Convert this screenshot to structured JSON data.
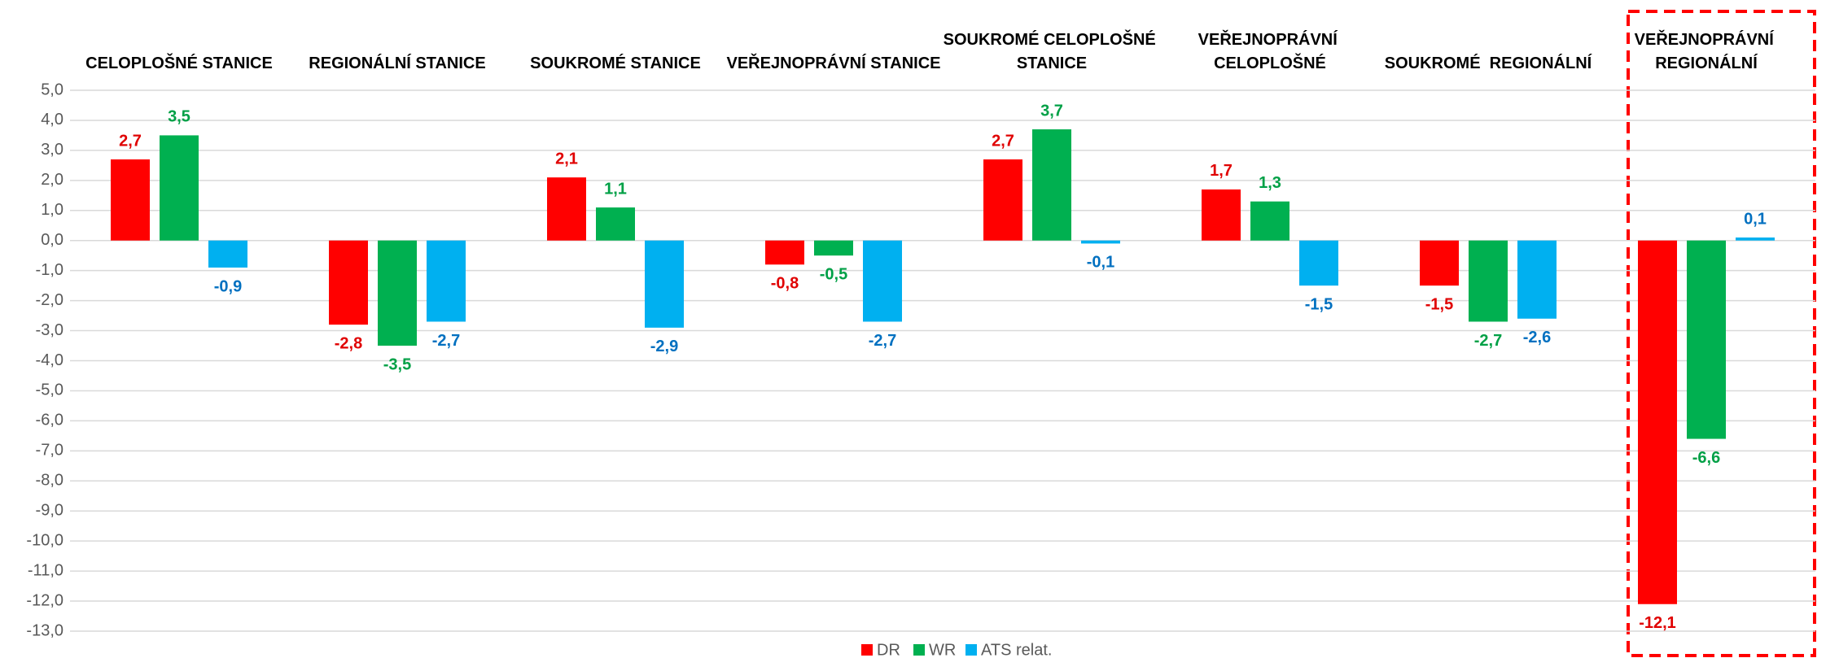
{
  "chart_data": {
    "type": "bar",
    "categories": [
      "CELOPLOŠNÉ STANICE",
      "REGIONÁLNÍ STANICE",
      "SOUKROMÉ STANICE",
      "VEŘEJNOPRÁVNÍ STANICE",
      "SOUKROMÉ CELOPLOŠNÉ STANICE",
      "VEŘEJNOPRÁVNÍ CELOPLOŠNÉ",
      "SOUKROMÉ  REGIONÁLNÍ",
      "VEŘEJNOPRÁVNÍ REGIONÁLNÍ"
    ],
    "series": [
      {
        "name": "DR",
        "color": "#ff0000",
        "label_color": "#e00000",
        "values": [
          2.7,
          -2.8,
          2.1,
          -0.8,
          2.7,
          1.7,
          -1.5,
          -12.1
        ],
        "value_labels": [
          "2,7",
          "-2,8",
          "2,1",
          "-0,8",
          "2,7",
          "1,7",
          "-1,5",
          "-12,1"
        ]
      },
      {
        "name": "WR",
        "color": "#00b050",
        "label_color": "#00a046",
        "values": [
          3.5,
          -3.5,
          1.1,
          -0.5,
          3.7,
          1.3,
          -2.7,
          -6.6
        ],
        "value_labels": [
          "3,5",
          "-3,5",
          "1,1",
          "-0,5",
          "3,7",
          "1,3",
          "-2,7",
          "-6,6"
        ]
      },
      {
        "name": "ATS relat.",
        "color": "#00b0f0",
        "label_color": "#0070c0",
        "values": [
          -0.9,
          -2.7,
          -2.9,
          -2.7,
          -0.1,
          -1.5,
          -2.6,
          0.1
        ],
        "value_labels": [
          "-0,9",
          "-2,7",
          "-2,9",
          "-2,7",
          "-0,1",
          "-1,5",
          "-2,6",
          "0,1"
        ]
      }
    ],
    "ylim": [
      -13,
      5
    ],
    "yticks": [
      {
        "value": 5,
        "label": "5,0"
      },
      {
        "value": 4,
        "label": "4,0"
      },
      {
        "value": 3,
        "label": "3,0"
      },
      {
        "value": 2,
        "label": "2,0"
      },
      {
        "value": 1,
        "label": "1,0"
      },
      {
        "value": 0,
        "label": "0,0"
      },
      {
        "value": -1,
        "label": "-1,0"
      },
      {
        "value": -2,
        "label": "-2,0"
      },
      {
        "value": -3,
        "label": "-3,0"
      },
      {
        "value": -4,
        "label": "-4,0"
      },
      {
        "value": -5,
        "label": "-5,0"
      },
      {
        "value": -6,
        "label": "-6,0"
      },
      {
        "value": -7,
        "label": "-7,0"
      },
      {
        "value": -8,
        "label": "-8,0"
      },
      {
        "value": -9,
        "label": "-9,0"
      },
      {
        "value": -10,
        "label": "-10,0"
      },
      {
        "value": -11,
        "label": "-11,0"
      },
      {
        "value": -12,
        "label": "-12,0"
      },
      {
        "value": -13,
        "label": "-13,0"
      }
    ],
    "grid": true,
    "legend": "bottom"
  }
}
